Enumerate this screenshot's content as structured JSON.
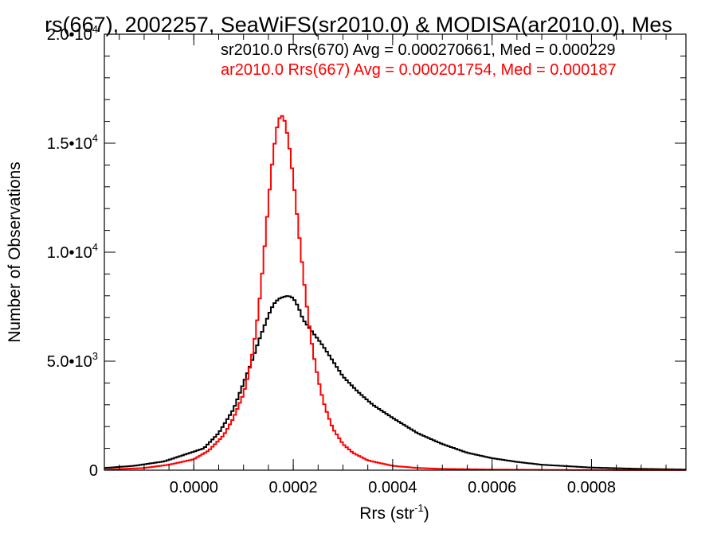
{
  "chart_data": {
    "type": "histogram",
    "title": "rs(667), 2002257, SeaWiFS(sr2010.0) & MODISA(ar2010.0), Mes",
    "xlabel": "Rrs (str",
    "xlabel_sup": "-1",
    "xlabel_tail": ")",
    "ylabel": "Number of Observations",
    "xlim": [
      -0.00018,
      0.00099
    ],
    "ylim": [
      0,
      20000
    ],
    "grid": false,
    "legend_position": "top-right",
    "x_ticks": [
      {
        "value": 0.0,
        "label": "0.0000"
      },
      {
        "value": 0.0002,
        "label": "0.0002"
      },
      {
        "value": 0.0004,
        "label": "0.0004"
      },
      {
        "value": 0.0006,
        "label": "0.0006"
      },
      {
        "value": 0.0008,
        "label": "0.0008"
      }
    ],
    "y_ticks": [
      {
        "value": 0,
        "label": "0",
        "sup": ""
      },
      {
        "value": 5000,
        "label": "5.0•10",
        "sup": "3"
      },
      {
        "value": 10000,
        "label": "1.0•10",
        "sup": "4"
      },
      {
        "value": 15000,
        "label": "1.5•10",
        "sup": "4"
      },
      {
        "value": 20000,
        "label": "2.0•10",
        "sup": "4"
      }
    ],
    "series": [
      {
        "name": "sr2010.0 Rrs(670) Avg = 0.000270661, Med = 0.000229",
        "color": "#000000",
        "x": [
          -0.00018,
          -0.00012,
          -6e-05,
          -2e-05,
          2e-05,
          5e-05,
          8e-05,
          0.0001,
          0.00012,
          0.00013,
          0.00014,
          0.00015,
          0.00016,
          0.00017,
          0.00018,
          0.00019,
          0.0002,
          0.00021,
          0.00022,
          0.00024,
          0.00026,
          0.00028,
          0.0003,
          0.00033,
          0.00036,
          0.0004,
          0.00045,
          0.0005,
          0.00055,
          0.0006,
          0.00065,
          0.0007,
          0.0008,
          0.0009,
          0.00099
        ],
        "values": [
          100,
          200,
          400,
          700,
          1000,
          1700,
          2800,
          4000,
          5200,
          5900,
          6500,
          7100,
          7600,
          7850,
          7950,
          8000,
          7900,
          7500,
          6900,
          6300,
          5700,
          5000,
          4300,
          3600,
          3000,
          2400,
          1700,
          1200,
          800,
          550,
          380,
          250,
          120,
          60,
          30
        ]
      },
      {
        "name": "ar2010.0 Rrs(667) Avg = 0.000201754, Med = 0.000187",
        "color": "#ff0000",
        "x": [
          -0.00018,
          -0.0001,
          -5e-05,
          0.0,
          3e-05,
          6e-05,
          8e-05,
          0.0001,
          0.00011,
          0.00012,
          0.00013,
          0.00014,
          0.00015,
          0.00016,
          0.00017,
          0.00018,
          0.00019,
          0.0002,
          0.00021,
          0.00022,
          0.00023,
          0.00024,
          0.00025,
          0.00026,
          0.00027,
          0.00028,
          0.0003,
          0.00032,
          0.00035,
          0.0004,
          0.00045,
          0.0005,
          0.0006,
          0.0007,
          0.0008,
          0.00099
        ],
        "values": [
          20,
          100,
          250,
          500,
          900,
          1600,
          2400,
          3500,
          4400,
          5600,
          7300,
          9600,
          12300,
          14600,
          16100,
          16300,
          15200,
          13400,
          11200,
          9000,
          7000,
          5400,
          4200,
          3200,
          2500,
          1900,
          1200,
          800,
          450,
          200,
          100,
          60,
          30,
          15,
          8,
          3
        ]
      }
    ]
  }
}
